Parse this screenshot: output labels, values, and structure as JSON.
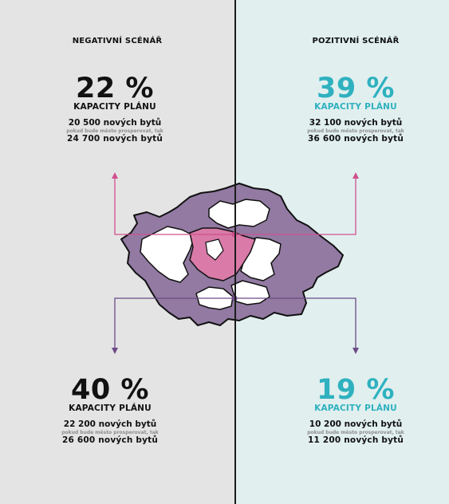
{
  "colors": {
    "left_bg": "#e4e4e4",
    "right_bg": "#e1efef",
    "teal": "#2fb1bf",
    "purple": "#927aa2",
    "pink": "#d97aa8",
    "purple_line": "#6b4a86",
    "pink_line": "#d0508e"
  },
  "negative": {
    "title": "NEGATIVNÍ SCÉNÁŘ",
    "top": {
      "percent": "22 %",
      "capacity": "KAPACITY PLÁNU",
      "units": "20 500 nových bytů",
      "note": "pokud bude město prosperovat, tak",
      "units_alt": "24 700 nových bytů"
    },
    "bottom": {
      "percent": "40 %",
      "capacity": "KAPACITY PLÁNU",
      "units": "22 200 nových bytů",
      "note": "pokud bude město prosperovat, tak",
      "units_alt": "26 600 nových bytů"
    }
  },
  "positive": {
    "title": "POZITIVNÍ SCÉNÁŘ",
    "top": {
      "percent": "39 %",
      "capacity": "KAPACITY PLÁNU",
      "units": "32 100 nových bytů",
      "note": "pokud bude město prosperovat, tak",
      "units_alt": "36 600 nových bytů"
    },
    "bottom": {
      "percent": "19 %",
      "capacity": "KAPACITY PLÁNU",
      "units": "10 200 nových bytů",
      "note": "pokud bude město prosperovat, tak",
      "units_alt": "11 200 nových bytů"
    }
  }
}
